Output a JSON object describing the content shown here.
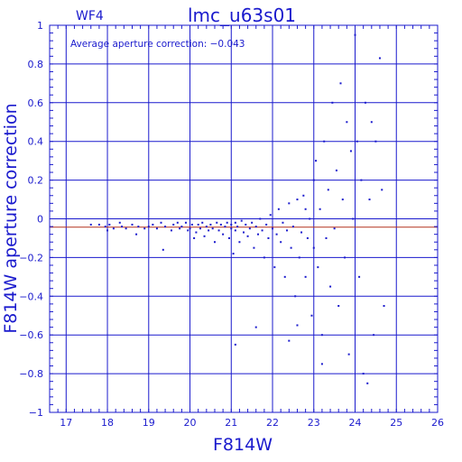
{
  "chart_data": {
    "type": "scatter",
    "title": "lmc_u63s01",
    "chip_label": "WF4",
    "annotation": "Average aperture correction: −0.043",
    "xlabel": "F814W",
    "ylabel": "F814W aperture correction",
    "xlim": [
      16.6,
      26
    ],
    "ylim": [
      -1,
      1
    ],
    "xticks": [
      17,
      18,
      19,
      20,
      21,
      22,
      23,
      24,
      25,
      26
    ],
    "yticks": [
      -1,
      -0.8,
      -0.6,
      -0.4,
      -0.2,
      0,
      0.2,
      0.4,
      0.6,
      0.8,
      1
    ],
    "xtick_labels": [
      "17",
      "18",
      "19",
      "20",
      "21",
      "22",
      "23",
      "24",
      "25",
      "26"
    ],
    "ytick_labels": [
      "−1",
      "−0.8",
      "−0.6",
      "−0.4",
      "−0.2",
      "0",
      "0.2",
      "0.4",
      "0.6",
      "0.8",
      "1"
    ],
    "grid": true,
    "average_line": -0.043,
    "colors": {
      "axis": "#1a1acd",
      "points": "#1a1acd",
      "average_line": "#b4321e",
      "background": "#ffffff"
    },
    "series": [
      {
        "points": [
          [
            17.6,
            -0.03
          ],
          [
            17.8,
            -0.03
          ],
          [
            17.95,
            -0.04
          ],
          [
            18.0,
            -0.06
          ],
          [
            18.05,
            -0.03
          ],
          [
            18.15,
            -0.05
          ],
          [
            18.3,
            -0.02
          ],
          [
            18.35,
            -0.04
          ],
          [
            18.45,
            -0.05
          ],
          [
            18.6,
            -0.03
          ],
          [
            18.7,
            -0.08
          ],
          [
            18.75,
            -0.04
          ],
          [
            18.9,
            -0.05
          ],
          [
            19.0,
            -0.04
          ],
          [
            19.1,
            -0.03
          ],
          [
            19.2,
            -0.05
          ],
          [
            19.3,
            -0.02
          ],
          [
            19.35,
            -0.16
          ],
          [
            19.4,
            -0.04
          ],
          [
            19.55,
            -0.06
          ],
          [
            19.6,
            -0.03
          ],
          [
            19.7,
            -0.02
          ],
          [
            19.75,
            -0.05
          ],
          [
            19.8,
            -0.04
          ],
          [
            19.9,
            -0.02
          ],
          [
            19.95,
            -0.06
          ],
          [
            20.0,
            -0.05
          ],
          [
            20.05,
            -0.03
          ],
          [
            20.1,
            -0.1
          ],
          [
            20.15,
            -0.07
          ],
          [
            20.2,
            -0.03
          ],
          [
            20.25,
            -0.05
          ],
          [
            20.3,
            -0.02
          ],
          [
            20.35,
            -0.09
          ],
          [
            20.4,
            -0.04
          ],
          [
            20.45,
            -0.06
          ],
          [
            20.5,
            -0.03
          ],
          [
            20.55,
            -0.05
          ],
          [
            20.6,
            -0.12
          ],
          [
            20.65,
            -0.02
          ],
          [
            20.7,
            -0.06
          ],
          [
            20.75,
            -0.03
          ],
          [
            20.8,
            -0.08
          ],
          [
            20.85,
            -0.04
          ],
          [
            20.9,
            -0.02
          ],
          [
            20.95,
            -0.1
          ],
          [
            21.0,
            -0.05
          ],
          [
            21.0,
            -0.03
          ],
          [
            21.05,
            -0.18
          ],
          [
            21.1,
            -0.06
          ],
          [
            21.1,
            -0.02
          ],
          [
            21.15,
            -0.04
          ],
          [
            21.2,
            -0.12
          ],
          [
            21.25,
            -0.01
          ],
          [
            21.3,
            -0.07
          ],
          [
            21.35,
            -0.03
          ],
          [
            21.4,
            -0.09
          ],
          [
            21.45,
            -0.05
          ],
          [
            21.5,
            -0.02
          ],
          [
            21.55,
            -0.15
          ],
          [
            21.6,
            -0.04
          ],
          [
            21.65,
            -0.08
          ],
          [
            21.7,
            0.0
          ],
          [
            21.75,
            -0.06
          ],
          [
            21.8,
            -0.2
          ],
          [
            21.85,
            -0.03
          ],
          [
            21.9,
            -0.1
          ],
          [
            21.95,
            0.02
          ],
          [
            22.0,
            -0.05
          ],
          [
            22.05,
            -0.25
          ],
          [
            22.1,
            -0.08
          ],
          [
            22.15,
            0.05
          ],
          [
            22.2,
            -0.12
          ],
          [
            22.25,
            -0.02
          ],
          [
            22.3,
            -0.3
          ],
          [
            22.35,
            -0.06
          ],
          [
            22.4,
            0.08
          ],
          [
            22.45,
            -0.15
          ],
          [
            22.5,
            -0.04
          ],
          [
            22.55,
            -0.4
          ],
          [
            22.6,
            0.1
          ],
          [
            22.65,
            -0.2
          ],
          [
            22.7,
            -0.07
          ],
          [
            22.75,
            0.12
          ],
          [
            22.8,
            -0.3
          ],
          [
            22.85,
            -0.1
          ],
          [
            22.9,
            0.0
          ],
          [
            22.95,
            -0.5
          ],
          [
            23.0,
            0.2
          ],
          [
            23.0,
            -0.15
          ],
          [
            23.05,
            0.3
          ],
          [
            23.1,
            -0.25
          ],
          [
            23.15,
            0.05
          ],
          [
            23.2,
            -0.6
          ],
          [
            23.25,
            0.4
          ],
          [
            23.3,
            -0.1
          ],
          [
            23.35,
            0.15
          ],
          [
            23.4,
            -0.35
          ],
          [
            23.45,
            0.6
          ],
          [
            23.5,
            -0.05
          ],
          [
            23.55,
            0.25
          ],
          [
            23.6,
            -0.45
          ],
          [
            23.65,
            0.7
          ],
          [
            23.7,
            0.1
          ],
          [
            23.75,
            -0.2
          ],
          [
            23.8,
            0.5
          ],
          [
            23.85,
            -0.7
          ],
          [
            23.9,
            0.35
          ],
          [
            23.95,
            0.0
          ],
          [
            24.0,
            0.95
          ],
          [
            24.05,
            0.4
          ],
          [
            24.1,
            -0.3
          ],
          [
            24.15,
            0.2
          ],
          [
            24.2,
            -0.8
          ],
          [
            24.25,
            0.6
          ],
          [
            24.3,
            -0.85
          ],
          [
            24.35,
            0.1
          ],
          [
            24.4,
            0.5
          ],
          [
            24.45,
            -0.6
          ],
          [
            24.5,
            0.4
          ],
          [
            24.6,
            0.83
          ],
          [
            24.65,
            0.15
          ],
          [
            24.7,
            -0.45
          ],
          [
            22.8,
            0.05
          ],
          [
            22.6,
            -0.55
          ],
          [
            21.6,
            -0.56
          ],
          [
            21.1,
            -0.65
          ],
          [
            22.4,
            -0.63
          ],
          [
            23.2,
            -0.75
          ]
        ]
      }
    ]
  }
}
